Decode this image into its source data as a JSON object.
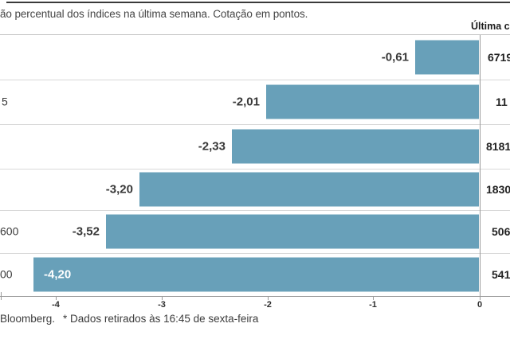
{
  "header": {
    "title_fragment": "ão percentual dos índices na última semana. Cotação em pontos.",
    "value_column_header_fragment": "Última c"
  },
  "footer": {
    "source_fragment": "Bloomberg.",
    "footnote": "* Dados retirados às 16:45 de sexta-feira"
  },
  "colors": {
    "bar": "#68A0B9",
    "grid_line": "#D8D8D8",
    "axis_line": "#9B9B9B",
    "top_rule": "#3A3A3A"
  },
  "chart_data": {
    "type": "bar",
    "orientation": "horizontal",
    "title_fragment": "ão percentual dos índices na última semana. Cotação em pontos.",
    "note": "image is cropped: index names on the left and last-quote digits on the right are partially cut off",
    "rows": [
      {
        "category_fragment": "",
        "pct_label": "-0,61",
        "value": -0.61,
        "last_quote_fragment": "6719"
      },
      {
        "category_fragment": "5",
        "pct_label": "-2,01",
        "value": -2.01,
        "last_quote_fragment": "11"
      },
      {
        "category_fragment": "",
        "pct_label": "-2,33",
        "value": -2.33,
        "last_quote_fragment": "8181"
      },
      {
        "category_fragment": "",
        "pct_label": "-3,20",
        "value": -3.2,
        "last_quote_fragment": "1830"
      },
      {
        "category_fragment": "600",
        "pct_label": "-3,52",
        "value": -3.52,
        "last_quote_fragment": "506"
      },
      {
        "category_fragment": "00",
        "pct_label": "-4,20",
        "value": -4.2,
        "last_quote_fragment": "541"
      }
    ],
    "values": [
      -0.61,
      -2.01,
      -2.33,
      -3.2,
      -3.52,
      -4.2
    ],
    "x_ticks": [
      "-4",
      "-3",
      "-2",
      "-1",
      "0"
    ],
    "xlim": [
      -4.5,
      0
    ],
    "grid": false,
    "legend": "none",
    "bar_color": "#68A0B9"
  }
}
